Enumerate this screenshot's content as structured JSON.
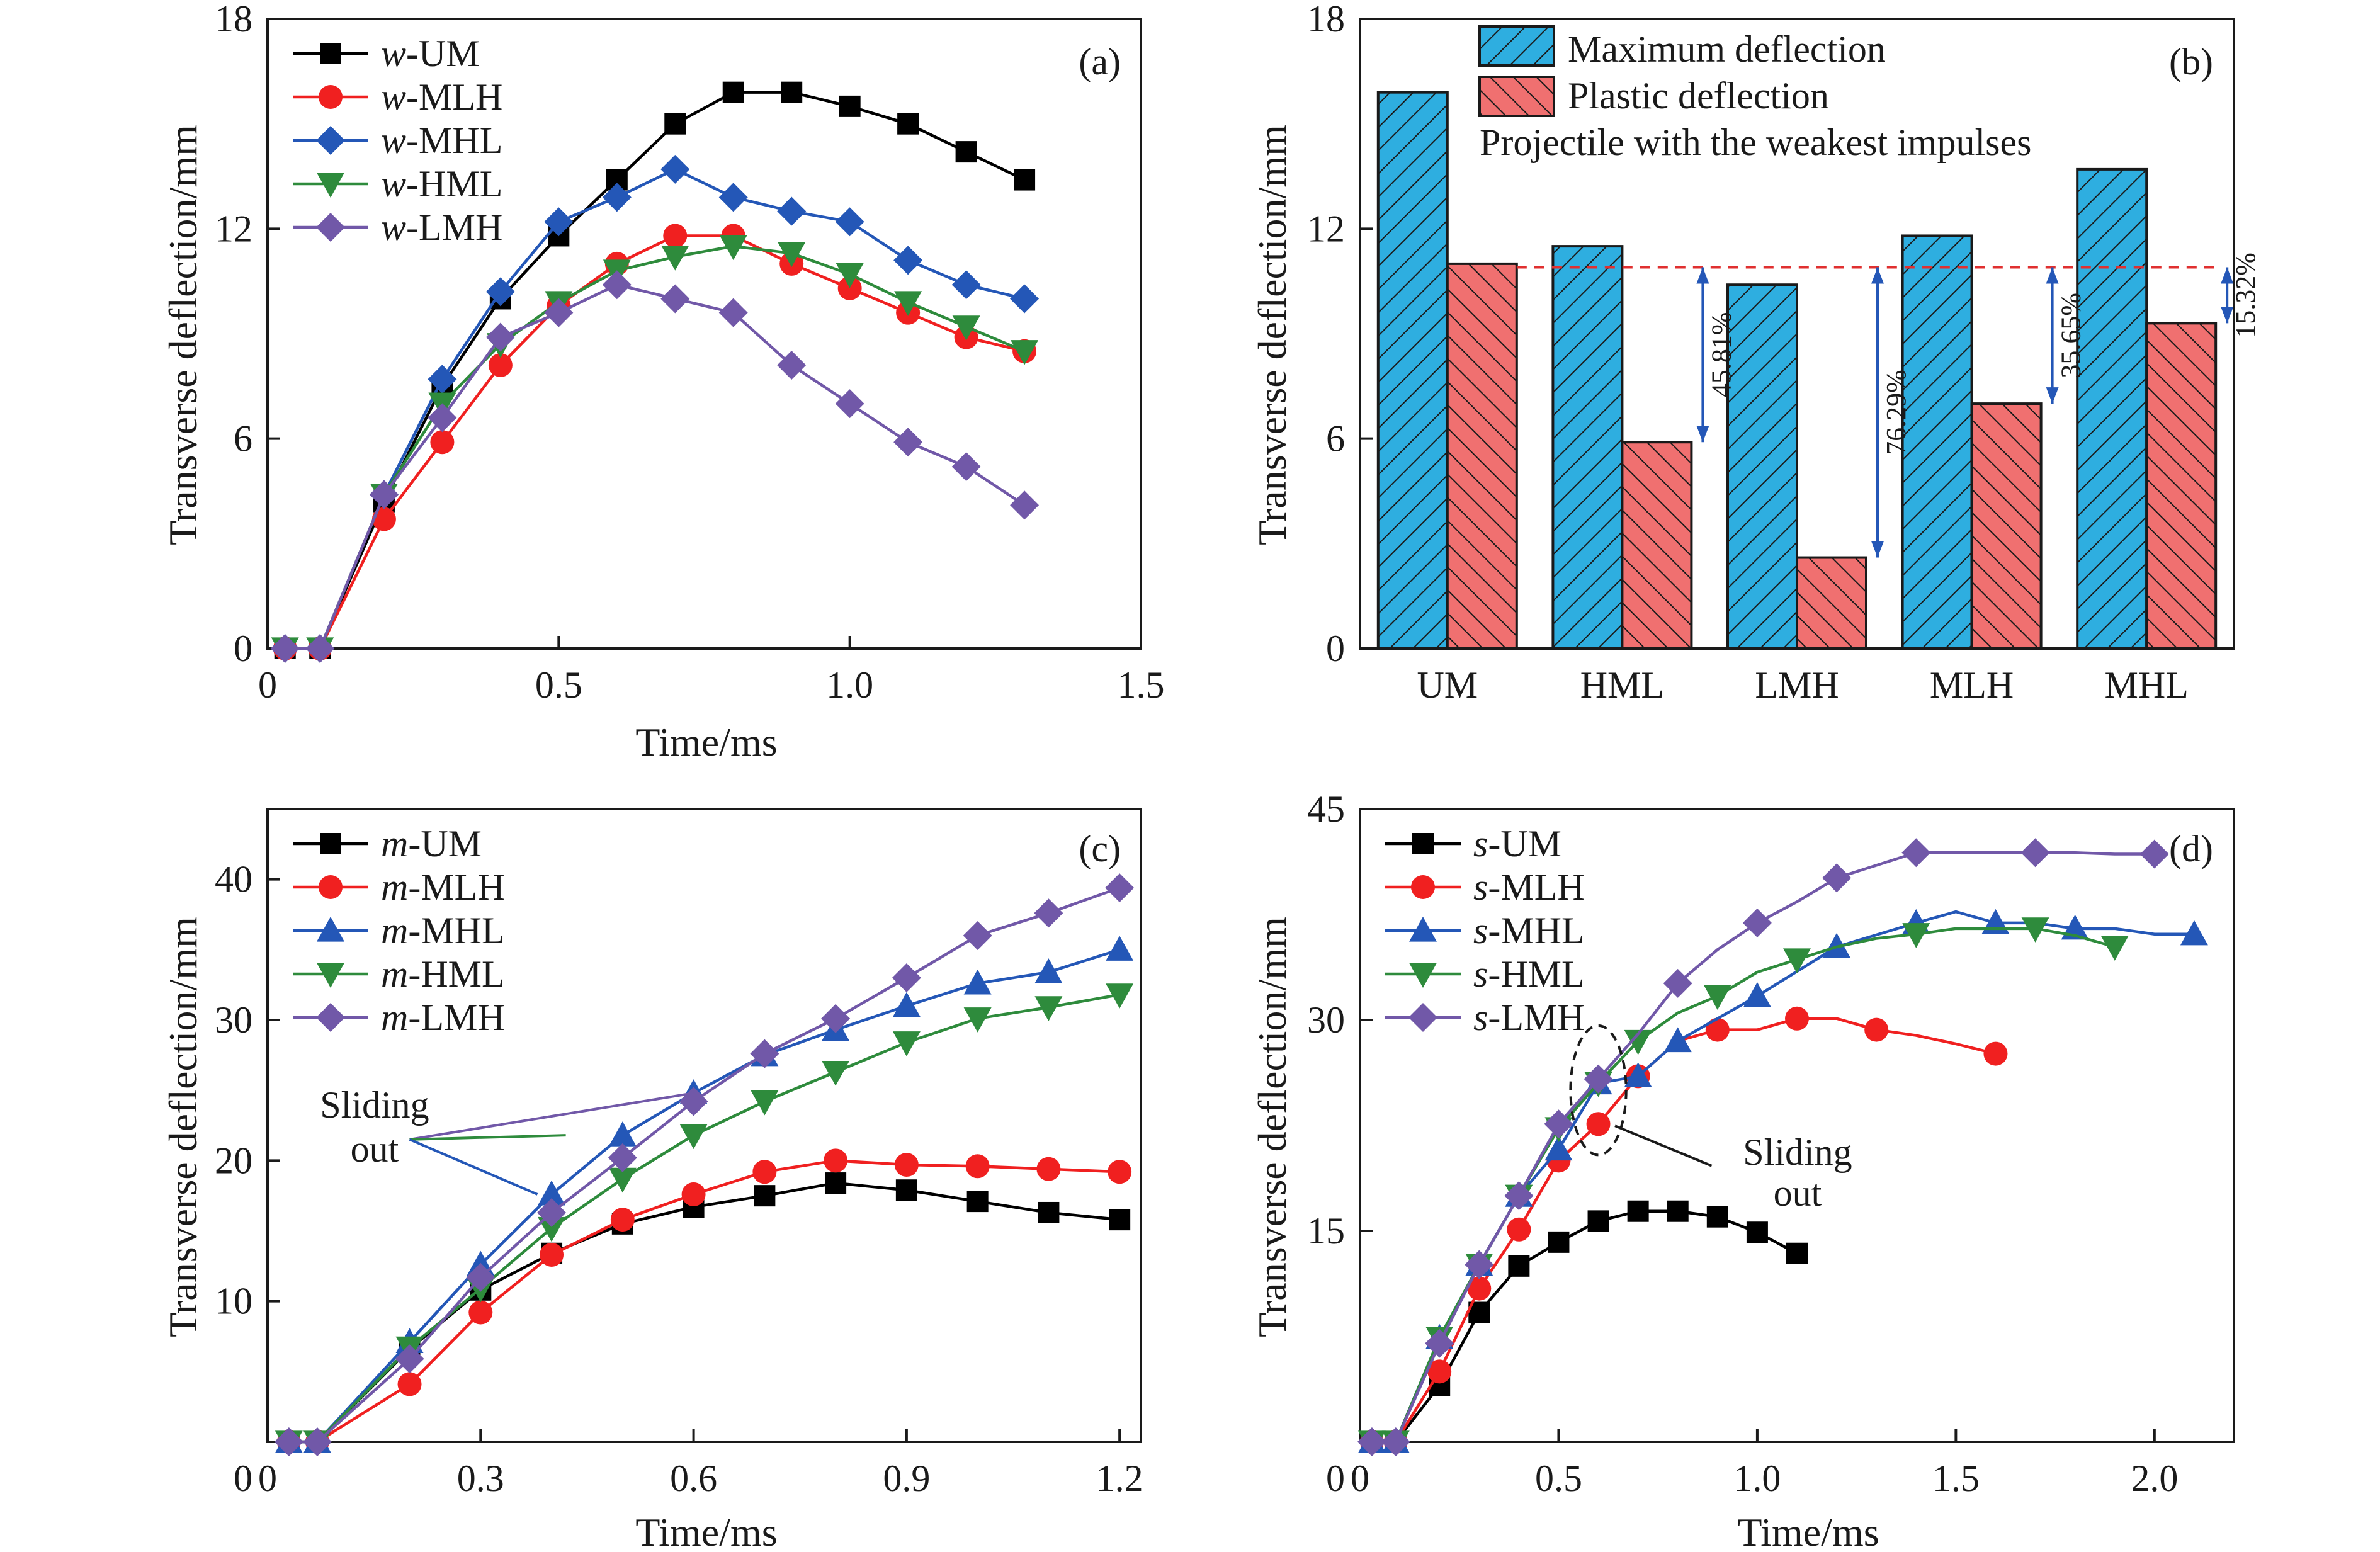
{
  "figure": {
    "panels": [
      "(a)",
      "(b)",
      "(c)",
      "(d)"
    ]
  },
  "colors": {
    "UM": "#000000",
    "MLH": "#f02020",
    "MHL": "#2457b7",
    "HML": "#2e8b3c",
    "LMH": "#7158a8",
    "max_bar": "#2eaee0",
    "plastic_bar": "#f07070",
    "guide": "#e03030",
    "arrow": "#2457b7"
  },
  "chart_data": [
    {
      "panel": "(a)",
      "type": "line",
      "xlabel": "Time/ms",
      "ylabel": "Transverse deflection/mm",
      "xlim": [
        0,
        1.5
      ],
      "ylim": [
        0,
        18
      ],
      "xticks": [
        0,
        0.5,
        1.0,
        1.5
      ],
      "xticklabels": [
        "0",
        "0.5",
        "1.0",
        "1.5"
      ],
      "yticks": [
        0,
        6,
        12,
        18
      ],
      "yticklabels": [
        "0",
        "6",
        "12",
        "18"
      ],
      "legend_position": "top-left",
      "series": [
        {
          "key": "UM",
          "prefix": "w",
          "suffix": "-UM",
          "marker": "square",
          "x": [
            0.03,
            0.09,
            0.2,
            0.3,
            0.4,
            0.5,
            0.6,
            0.7,
            0.8,
            0.9,
            1.0,
            1.1,
            1.2,
            1.3
          ],
          "y": [
            0,
            0,
            4.2,
            7.5,
            10.0,
            11.8,
            13.4,
            15.0,
            15.9,
            15.9,
            15.5,
            15.0,
            14.2,
            13.4
          ]
        },
        {
          "key": "MLH",
          "prefix": "w",
          "suffix": "-MLH",
          "marker": "circle",
          "x": [
            0.03,
            0.09,
            0.2,
            0.3,
            0.4,
            0.5,
            0.6,
            0.7,
            0.8,
            0.9,
            1.0,
            1.1,
            1.2,
            1.3
          ],
          "y": [
            0,
            0,
            3.7,
            5.9,
            8.1,
            9.8,
            11.0,
            11.8,
            11.8,
            11.0,
            10.3,
            9.6,
            8.9,
            8.5
          ]
        },
        {
          "key": "MHL",
          "prefix": "w",
          "suffix": "-MHL",
          "marker": "diamond",
          "x": [
            0.03,
            0.09,
            0.2,
            0.3,
            0.4,
            0.5,
            0.6,
            0.7,
            0.8,
            0.9,
            1.0,
            1.1,
            1.2,
            1.3
          ],
          "y": [
            0,
            0,
            4.4,
            7.7,
            10.2,
            12.2,
            12.9,
            13.7,
            12.9,
            12.5,
            12.2,
            11.1,
            10.4,
            10.0
          ]
        },
        {
          "key": "HML",
          "prefix": "w",
          "suffix": "-HML",
          "marker": "triangle-down",
          "x": [
            0.03,
            0.09,
            0.2,
            0.3,
            0.4,
            0.5,
            0.6,
            0.7,
            0.8,
            0.9,
            1.0,
            1.1,
            1.2,
            1.3
          ],
          "y": [
            0,
            0,
            4.4,
            7.0,
            8.7,
            9.9,
            10.8,
            11.2,
            11.5,
            11.3,
            10.7,
            9.9,
            9.2,
            8.5
          ]
        },
        {
          "key": "LMH",
          "prefix": "w",
          "suffix": "-LMH",
          "marker": "diamond",
          "x": [
            0.03,
            0.09,
            0.2,
            0.3,
            0.4,
            0.5,
            0.6,
            0.7,
            0.8,
            0.9,
            1.0,
            1.1,
            1.2,
            1.3
          ],
          "y": [
            0,
            0,
            4.4,
            6.6,
            8.9,
            9.6,
            10.4,
            10.0,
            9.6,
            8.1,
            7.0,
            5.9,
            5.2,
            4.1
          ]
        }
      ]
    },
    {
      "panel": "(b)",
      "type": "bar",
      "ylabel": "Transverse deflection/mm",
      "ylim": [
        0,
        18
      ],
      "yticks": [
        0,
        6,
        12,
        18
      ],
      "yticklabels": [
        "0",
        "6",
        "12",
        "18"
      ],
      "categories": [
        "UM",
        "HML",
        "LMH",
        "MLH",
        "MHL"
      ],
      "series": [
        {
          "name": "Maximum deflection",
          "values": [
            15.9,
            11.5,
            10.4,
            11.8,
            13.7
          ]
        },
        {
          "name": "Plastic deflection",
          "values": [
            11.0,
            5.9,
            2.6,
            7.0,
            9.3
          ]
        }
      ],
      "legend_note": "Projectile with the weakest impulses",
      "reference_line": 10.9,
      "annotations": [
        {
          "category": "HML",
          "text": "45.81%"
        },
        {
          "category": "LMH",
          "text": "76.29%"
        },
        {
          "category": "MLH",
          "text": "35.65%"
        },
        {
          "category": "MHL",
          "text": "15.32%"
        }
      ]
    },
    {
      "panel": "(c)",
      "type": "line",
      "xlabel": "Time/ms",
      "ylabel": "Transverse deflection/mm",
      "xlim": [
        0,
        1.23
      ],
      "ylim": [
        0,
        45
      ],
      "xticks": [
        0,
        0.3,
        0.6,
        0.9,
        1.2
      ],
      "xticklabels": [
        "0",
        "0.3",
        "0.6",
        "0.9",
        "1.2"
      ],
      "yticks": [
        10,
        20,
        30,
        40
      ],
      "yticklabels": [
        "10",
        "20",
        "30",
        "40"
      ],
      "origin_label": "0",
      "legend_position": "top-left",
      "note": [
        "Sliding",
        "out"
      ],
      "note_anchor": [
        0.2,
        21.5
      ],
      "note_targets": [
        {
          "series": "LMH",
          "x": 0.6,
          "y": 24.8
        },
        {
          "series": "HML",
          "x": 0.42,
          "y": 21.8
        },
        {
          "series": "MHL",
          "x": 0.38,
          "y": 17.6
        }
      ],
      "series": [
        {
          "key": "UM",
          "prefix": "m",
          "suffix": "-UM",
          "marker": "square",
          "x": [
            0.03,
            0.07,
            0.2,
            0.3,
            0.4,
            0.5,
            0.6,
            0.7,
            0.8,
            0.9,
            1.0,
            1.1,
            1.2
          ],
          "y": [
            0,
            0,
            6.6,
            10.8,
            13.4,
            15.5,
            16.7,
            17.5,
            18.4,
            17.9,
            17.1,
            16.3,
            15.8
          ]
        },
        {
          "key": "MLH",
          "prefix": "m",
          "suffix": "-MLH",
          "marker": "circle",
          "x": [
            0.03,
            0.07,
            0.2,
            0.3,
            0.4,
            0.5,
            0.6,
            0.7,
            0.8,
            0.9,
            1.0,
            1.1,
            1.2
          ],
          "y": [
            0,
            0,
            4.1,
            9.2,
            13.3,
            15.8,
            17.6,
            19.2,
            20.0,
            19.7,
            19.6,
            19.4,
            19.2
          ]
        },
        {
          "key": "MHL",
          "prefix": "m",
          "suffix": "-MHL",
          "marker": "triangle-up",
          "x": [
            0.03,
            0.07,
            0.2,
            0.3,
            0.4,
            0.5,
            0.6,
            0.7,
            0.8,
            0.9,
            1.0,
            1.1,
            1.2
          ],
          "y": [
            0,
            0,
            7.1,
            12.6,
            17.6,
            21.8,
            24.8,
            27.5,
            29.3,
            31.0,
            32.6,
            33.4,
            35.0
          ]
        },
        {
          "key": "HML",
          "prefix": "m",
          "suffix": "-HML",
          "marker": "triangle-down",
          "x": [
            0.03,
            0.07,
            0.2,
            0.3,
            0.4,
            0.5,
            0.6,
            0.7,
            0.8,
            0.9,
            1.0,
            1.1,
            1.2
          ],
          "y": [
            0,
            0,
            6.7,
            10.9,
            15.2,
            18.7,
            21.8,
            24.2,
            26.3,
            28.4,
            30.1,
            30.9,
            31.8
          ]
        },
        {
          "key": "LMH",
          "prefix": "m",
          "suffix": "-LMH",
          "marker": "diamond",
          "x": [
            0.03,
            0.07,
            0.2,
            0.3,
            0.4,
            0.5,
            0.6,
            0.7,
            0.8,
            0.9,
            1.0,
            1.1,
            1.2
          ],
          "y": [
            0,
            0,
            5.9,
            11.7,
            16.3,
            20.2,
            24.2,
            27.6,
            30.1,
            33.0,
            36.0,
            37.6,
            39.4
          ]
        }
      ]
    },
    {
      "panel": "(d)",
      "type": "line",
      "xlabel": "Time/ms",
      "ylabel": "Transverse deflection/mm",
      "xlim": [
        0,
        2.2
      ],
      "ylim": [
        0,
        45
      ],
      "xticks": [
        0,
        0.5,
        1.0,
        1.5,
        2.0
      ],
      "xticklabels": [
        "0",
        "0.5",
        "1.0",
        "1.5",
        "2.0"
      ],
      "yticks": [
        15,
        30,
        45
      ],
      "yticklabels": [
        "15",
        "30",
        "45"
      ],
      "origin_label": "0",
      "legend_position": "top-left",
      "note": [
        "Sliding",
        "out"
      ],
      "ellipse": {
        "x": 0.6,
        "y": 25.0,
        "rx": 0.07,
        "ry": 4.6
      },
      "series": [
        {
          "key": "UM",
          "prefix": "s",
          "suffix": "-UM",
          "marker": "square",
          "x": [
            0.03,
            0.09,
            0.2,
            0.3,
            0.4,
            0.5,
            0.6,
            0.7,
            0.8,
            0.9,
            1.0,
            1.1
          ],
          "y": [
            0,
            0,
            4.0,
            9.2,
            12.5,
            14.2,
            15.7,
            16.4,
            16.4,
            16.0,
            14.9,
            13.4
          ]
        },
        {
          "key": "MLH",
          "prefix": "s",
          "suffix": "-MLH",
          "marker": "circle",
          "x": [
            0.03,
            0.09,
            0.2,
            0.3,
            0.4,
            0.5,
            0.6,
            0.7,
            0.8,
            0.9,
            1.0,
            1.1,
            1.2,
            1.3,
            1.4,
            1.5,
            1.6
          ],
          "y": [
            0,
            0,
            5.0,
            10.9,
            15.1,
            20.0,
            22.6,
            26.0,
            28.5,
            29.3,
            29.3,
            30.1,
            30.1,
            29.3,
            28.9,
            28.3,
            27.6
          ],
          "markers_at": [
            0,
            1,
            2,
            3,
            4,
            5,
            6,
            7,
            9,
            11,
            13,
            16
          ]
        },
        {
          "key": "MHL",
          "prefix": "s",
          "suffix": "-MHL",
          "marker": "triangle-up",
          "x": [
            0.03,
            0.09,
            0.2,
            0.3,
            0.4,
            0.5,
            0.6,
            0.7,
            0.8,
            1.0,
            1.2,
            1.4,
            1.5,
            1.6,
            1.7,
            1.8,
            1.9,
            2.0,
            2.1
          ],
          "y": [
            0,
            0,
            7.4,
            12.6,
            17.5,
            20.8,
            25.5,
            26.0,
            28.5,
            31.7,
            35.2,
            36.9,
            37.7,
            36.9,
            36.9,
            36.5,
            36.5,
            36.1,
            36.1
          ],
          "markers_at": [
            0,
            1,
            2,
            3,
            4,
            5,
            6,
            7,
            8,
            9,
            10,
            11,
            13,
            15,
            18
          ]
        },
        {
          "key": "HML",
          "prefix": "s",
          "suffix": "-HML",
          "marker": "triangle-down",
          "x": [
            0.03,
            0.09,
            0.2,
            0.3,
            0.4,
            0.5,
            0.6,
            0.7,
            0.8,
            0.9,
            1.0,
            1.1,
            1.2,
            1.3,
            1.4,
            1.5,
            1.6,
            1.7,
            1.8,
            1.9
          ],
          "y": [
            0,
            0,
            7.4,
            12.6,
            17.5,
            22.3,
            25.5,
            28.5,
            30.5,
            31.7,
            33.4,
            34.3,
            35.2,
            35.8,
            36.1,
            36.5,
            36.5,
            36.5,
            36.0,
            35.2
          ],
          "markers_at": [
            0,
            1,
            2,
            3,
            4,
            5,
            6,
            7,
            9,
            11,
            14,
            17,
            19
          ]
        },
        {
          "key": "LMH",
          "prefix": "s",
          "suffix": "-LMH",
          "marker": "diamond",
          "x": [
            0.03,
            0.09,
            0.2,
            0.3,
            0.4,
            0.5,
            0.6,
            0.7,
            0.8,
            0.9,
            1.0,
            1.1,
            1.2,
            1.3,
            1.4,
            1.5,
            1.6,
            1.7,
            1.8,
            1.9,
            2.0
          ],
          "y": [
            0,
            0,
            7.0,
            12.6,
            17.5,
            22.6,
            25.8,
            29.0,
            32.6,
            35.0,
            36.9,
            38.4,
            40.1,
            41.0,
            41.9,
            41.9,
            41.9,
            41.9,
            41.9,
            41.8,
            41.8
          ],
          "markers_at": [
            0,
            1,
            2,
            3,
            4,
            5,
            6,
            8,
            10,
            12,
            14,
            17,
            20
          ]
        }
      ]
    }
  ]
}
